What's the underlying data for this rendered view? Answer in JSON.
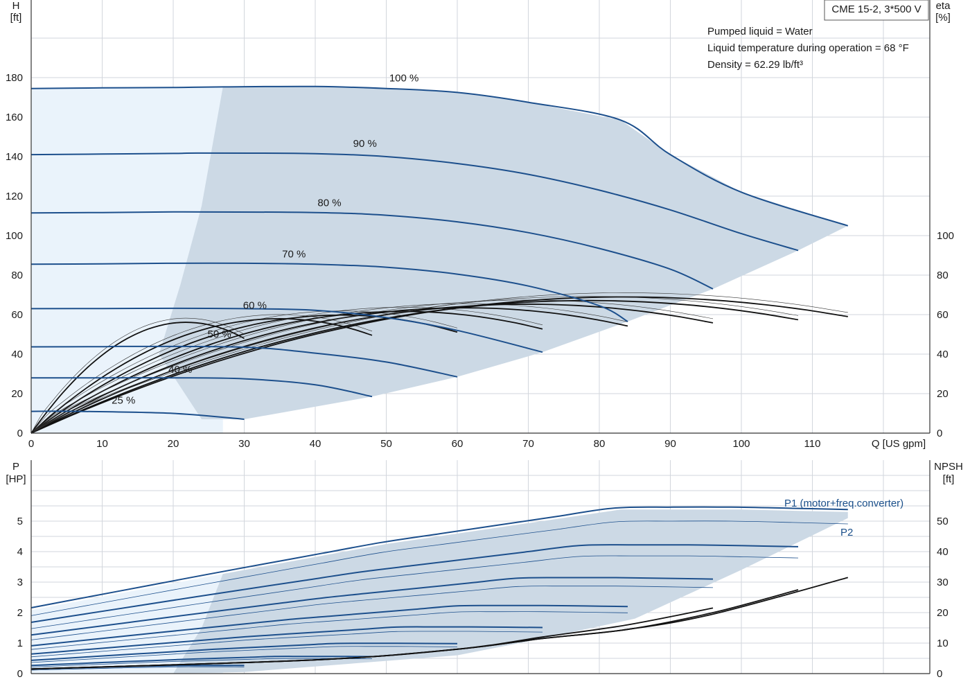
{
  "chart_data": [
    {
      "type": "line",
      "title": "CME 15-2, 3*500 V",
      "info_lines": [
        "Pumped liquid = Water",
        "Liquid temperature during operation = 68 °F",
        "Density = 62.29 lb/ft³"
      ],
      "xlabel": "Q [US gpm]",
      "ylabel_left": [
        "H",
        "[ft]"
      ],
      "ylabel_right": [
        "eta",
        "[%]"
      ],
      "xlim": [
        0,
        126
      ],
      "xticks": [
        0,
        10,
        20,
        30,
        40,
        50,
        60,
        70,
        80,
        90,
        100,
        110
      ],
      "ylim": [
        0,
        200
      ],
      "yticks_left": [
        0,
        20,
        40,
        60,
        80,
        100,
        120,
        140,
        160,
        180
      ],
      "yticks_right": [
        0,
        20,
        40,
        60,
        80,
        100
      ],
      "head_curves": [
        {
          "name": "100 %",
          "label_at": [
            52.5,
            178
          ],
          "x": [
            0,
            10,
            20,
            27,
            40,
            50,
            60,
            70,
            83,
            90,
            100,
            115
          ],
          "y": [
            174.5,
            174.8,
            175.0,
            175.3,
            175.5,
            174.5,
            172.5,
            167.5,
            158.5,
            141.0,
            122.0,
            105.0
          ]
        },
        {
          "name": "90 %",
          "label_at": [
            47,
            145
          ],
          "x": [
            0,
            10,
            20,
            24,
            40,
            50,
            60,
            70,
            80,
            90,
            100,
            108
          ],
          "y": [
            141.0,
            141.3,
            141.6,
            141.8,
            141.5,
            140.0,
            136.5,
            131.0,
            123.0,
            113.0,
            101.0,
            92.5
          ]
        },
        {
          "name": "80 %",
          "label_at": [
            42,
            115
          ],
          "x": [
            0,
            10,
            20,
            21.5,
            40,
            50,
            60,
            70,
            80,
            90,
            96
          ],
          "y": [
            111.5,
            111.7,
            112.0,
            112.0,
            111.7,
            110.3,
            107.0,
            101.5,
            93.5,
            83.0,
            73.0
          ]
        },
        {
          "name": "70 %",
          "label_at": [
            37,
            89
          ],
          "x": [
            0,
            10,
            19,
            30,
            40,
            50,
            60,
            70,
            80,
            84
          ],
          "y": [
            85.5,
            85.7,
            86.0,
            86.0,
            85.5,
            84.0,
            80.5,
            74.5,
            64.5,
            56.5
          ]
        },
        {
          "name": "60 %",
          "label_at": [
            31.5,
            63
          ],
          "x": [
            0,
            10,
            20,
            30,
            40,
            50,
            60,
            72
          ],
          "y": [
            63.0,
            63.1,
            63.2,
            63.0,
            62.2,
            58.5,
            52.0,
            41.0
          ]
        },
        {
          "name": "50 %",
          "label_at": [
            26.5,
            48.5
          ],
          "x": [
            0,
            10,
            13.5,
            30,
            40,
            50,
            60
          ],
          "y": [
            43.7,
            43.8,
            43.9,
            43.5,
            40.5,
            36.0,
            28.5
          ]
        },
        {
          "name": "40 %",
          "label_at": [
            21,
            30.5
          ],
          "x": [
            0,
            10,
            20,
            30,
            40,
            48
          ],
          "y": [
            28.0,
            28.0,
            28.0,
            27.5,
            24.5,
            18.5
          ]
        },
        {
          "name": "25 %",
          "label_at": [
            13,
            15
          ],
          "x": [
            0,
            6.5,
            20,
            30
          ],
          "y": [
            11.0,
            11.0,
            10.0,
            7.0
          ]
        }
      ],
      "operating_range_shaded": true,
      "efficiency_curves_shown": true,
      "grid": true
    },
    {
      "type": "line",
      "xlabel": "",
      "ylabel_left": [
        "P",
        "[HP]"
      ],
      "ylabel_right": [
        "NPSH",
        "[ft]"
      ],
      "xlim": [
        0,
        126
      ],
      "ylim_left": [
        0,
        6
      ],
      "yticks_left": [
        0,
        1,
        2,
        3,
        4,
        5
      ],
      "ylim_right": [
        0,
        60
      ],
      "yticks_right": [
        0,
        10,
        20,
        30,
        40,
        50
      ],
      "series": [
        {
          "name": "P1 (motor+freq.converter)",
          "x": [
            0,
            27,
            50,
            83,
            100,
            115
          ],
          "y": [
            2.08,
            3.27,
            4.25,
            5.38,
            5.38,
            5.3
          ]
        },
        {
          "name": "P2",
          "x": [
            0,
            27,
            50,
            83,
            100,
            115
          ],
          "y": [
            1.85,
            2.99,
            3.95,
            4.95,
            4.95,
            4.86
          ]
        }
      ],
      "npsh_curves": [
        {
          "x": [
            0,
            40,
            60,
            72,
            84,
            96
          ],
          "y": [
            1.5,
            4.5,
            8.0,
            12.0,
            16.0,
            21.5
          ]
        },
        {
          "x": [
            0,
            40,
            60,
            72,
            84,
            96,
            108
          ],
          "y": [
            1.5,
            4.5,
            8.0,
            11.5,
            14.5,
            20.0,
            27.5
          ]
        },
        {
          "x": [
            0,
            40,
            60,
            72,
            84,
            96,
            115
          ],
          "y": [
            1.5,
            4.5,
            8.0,
            11.5,
            14.5,
            19.5,
            31.5
          ]
        }
      ],
      "grid": true
    }
  ]
}
